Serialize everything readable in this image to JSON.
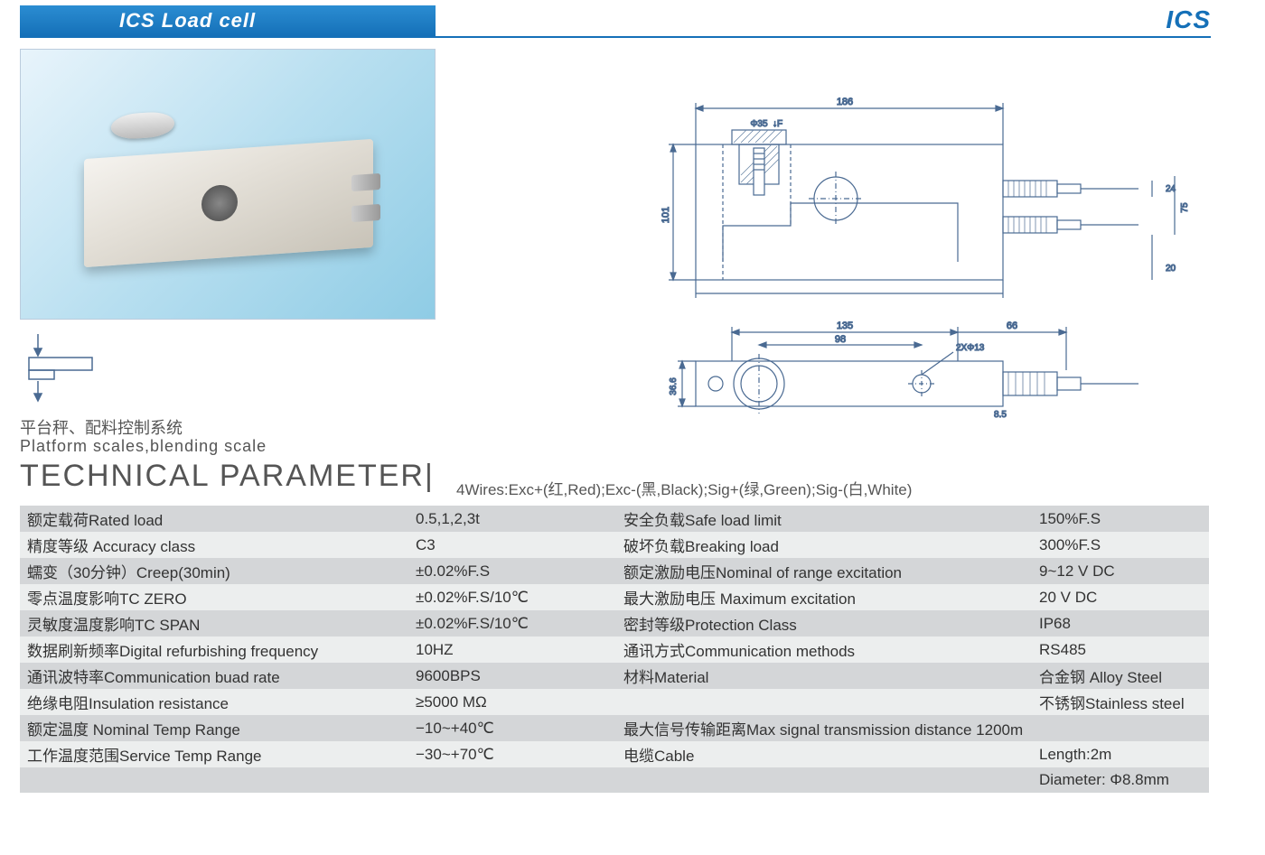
{
  "header": {
    "title": "ICS  Load cell",
    "brand_right": "ICS",
    "colors": {
      "bar_bg_top": "#2b8dd2",
      "bar_bg_bottom": "#1570b8",
      "bar_text": "#ffffff",
      "underline": "#1570b8"
    }
  },
  "application": {
    "cn": "平台秤、配料控制系统",
    "en": "Platform scales,blending scale"
  },
  "section": {
    "title": "TECHNICAL PARAMETER",
    "divider": "|",
    "wires": "4Wires:Exc+(红,Red);Exc-(黑,Black);Sig+(绿,Green);Sig-(白,White)"
  },
  "drawing": {
    "front": {
      "width_label": "186",
      "height_label": "101",
      "bolt_label": "Φ35",
      "force_label": "↓F",
      "conn_spacing": "24",
      "conn_height": "75",
      "conn_bottom": "20"
    },
    "top": {
      "overall": "135",
      "hole_center": "98",
      "hole_spec": "2XΦ13",
      "right_span": "66",
      "height": "36.6",
      "slot": "8.5"
    },
    "colors": {
      "stroke": "#4a6a92",
      "dim_text": "#4a6a92",
      "hatch": "#6a85a6"
    }
  },
  "table": {
    "colors": {
      "row_odd": "#d4d6d8",
      "row_even": "#eceeee",
      "text": "#333333"
    },
    "rows": [
      {
        "l": "额定载荷Rated load",
        "lv": "0.5,1,2,3t",
        "r": "安全负载Safe load limit",
        "rv": "150%F.S"
      },
      {
        "l": "精度等级 Accuracy class",
        "lv": "C3",
        "r": "破坏负载Breaking load",
        "rv": "300%F.S"
      },
      {
        "l": "蠕变（30分钟）Creep(30min)",
        "lv": "±0.02%F.S",
        "r": "额定激励电压Nominal of range excitation",
        "rv": "9~12 V DC"
      },
      {
        "l": "零点温度影响TC ZERO",
        "lv": "±0.02%F.S/10℃",
        "r": "最大激励电压 Maximum excitation",
        "rv": "20 V DC"
      },
      {
        "l": "灵敏度温度影响TC SPAN",
        "lv": "±0.02%F.S/10℃",
        "r": "密封等级Protection Class",
        "rv": "IP68"
      },
      {
        "l": "数据刷新频率Digital refurbishing frequency",
        "lv": "10HZ",
        "r": "通讯方式Communication methods",
        "rv": "RS485"
      },
      {
        "l": "通讯波特率Communication buad rate",
        "lv": "9600BPS",
        "r": "材料Material",
        "rv": "合金钢 Alloy Steel"
      },
      {
        "l": "绝缘电阻Insulation resistance",
        "lv": "≥5000 MΩ",
        "r": "",
        "rv": "不锈钢Stainless steel"
      },
      {
        "l": "额定温度 Nominal Temp Range",
        "lv": "−10~+40℃",
        "r": "最大信号传输距离Max signal transmission distance 1200m",
        "rv": ""
      },
      {
        "l": "工作温度范围Service Temp Range",
        "lv": "−30~+70℃",
        "r": "电缆Cable",
        "rv": "Length:2m"
      },
      {
        "l": "",
        "lv": "",
        "r": "",
        "rv": "Diameter: Φ8.8mm"
      }
    ]
  }
}
